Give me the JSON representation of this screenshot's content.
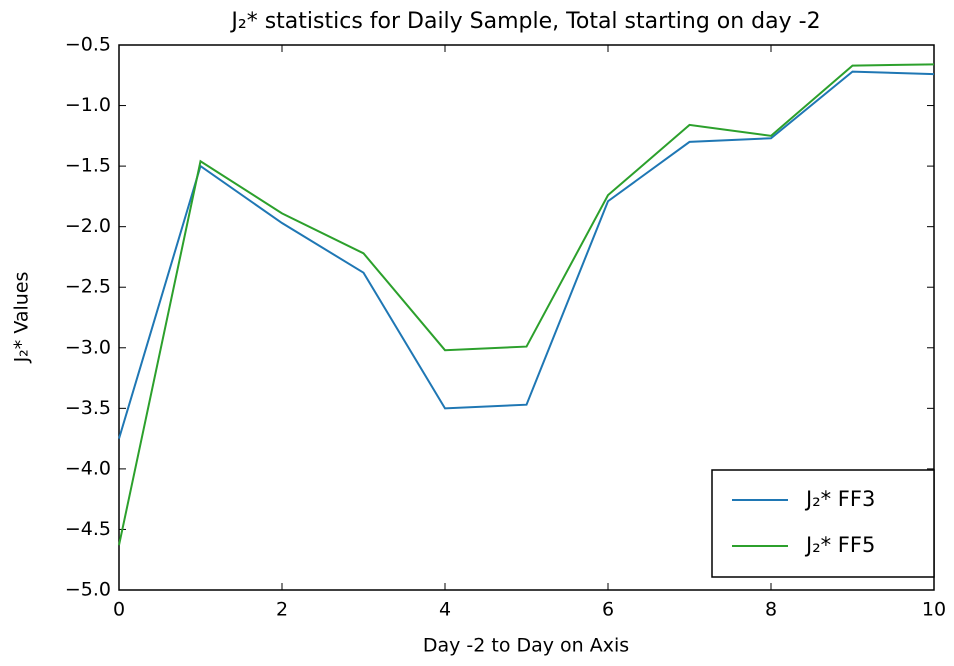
{
  "chart_data": {
    "type": "line",
    "title": "J₂* statistics for Daily Sample, Total starting on day -2",
    "x_label": "Day -2 to Day on Axis",
    "y_label": "J₂* Values",
    "x": [
      0,
      1,
      2,
      3,
      4,
      5,
      6,
      7,
      8,
      9,
      10
    ],
    "series": [
      {
        "name": "J₂* FF3",
        "color": "#1f77b4",
        "values": [
          -3.75,
          -1.5,
          -1.97,
          -2.38,
          -3.5,
          -3.47,
          -1.79,
          -1.3,
          -1.27,
          -0.72,
          -0.74
        ]
      },
      {
        "name": "J₂* FF5",
        "color": "#2ca02c",
        "values": [
          -4.63,
          -1.46,
          -1.89,
          -2.22,
          -3.02,
          -2.99,
          -1.74,
          -1.16,
          -1.25,
          -0.67,
          -0.66
        ]
      }
    ],
    "xlim": [
      0,
      10
    ],
    "xticks": [
      0,
      2,
      4,
      6,
      8,
      10
    ],
    "ylim": [
      -5.0,
      -0.5
    ],
    "yticks": [
      {
        "value": -5.0,
        "label": "−5.0"
      },
      {
        "value": -4.5,
        "label": "−4.5"
      },
      {
        "value": -4.0,
        "label": "−4.0"
      },
      {
        "value": -3.5,
        "label": "−3.5"
      },
      {
        "value": -3.0,
        "label": "−3.0"
      },
      {
        "value": -2.5,
        "label": "−2.5"
      },
      {
        "value": -2.0,
        "label": "−2.0"
      },
      {
        "value": -1.5,
        "label": "−1.5"
      },
      {
        "value": -1.0,
        "label": "−1.0"
      },
      {
        "value": -0.5,
        "label": "−0.5"
      }
    ],
    "legend": "lower right"
  }
}
